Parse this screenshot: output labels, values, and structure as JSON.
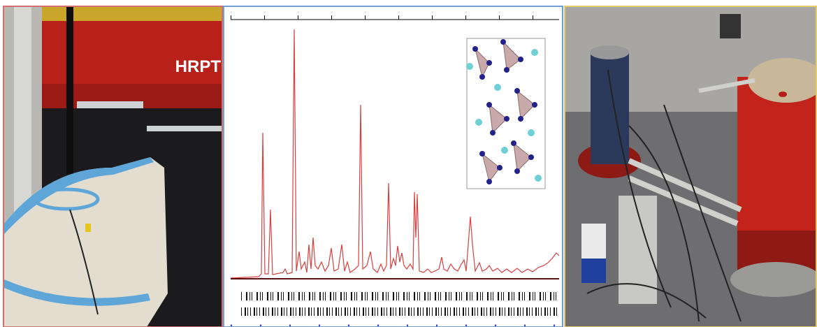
{
  "left_photo": {
    "sign": "HRPT"
  }
}
